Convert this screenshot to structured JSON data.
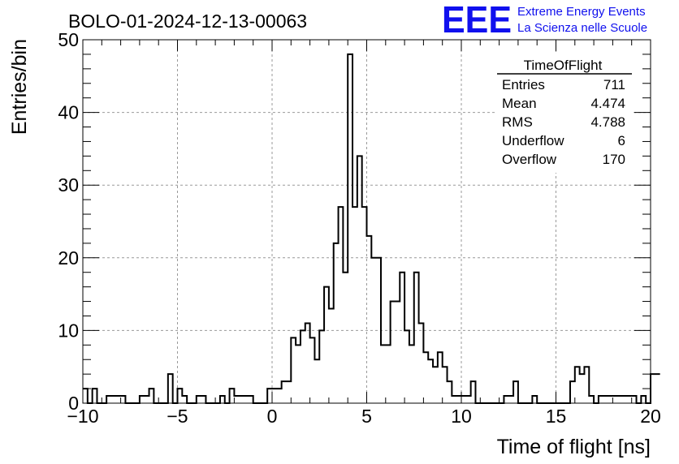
{
  "chart_data": {
    "type": "histogram",
    "title": "BOLO-01-2024-12-13-00063",
    "xlabel": "Time of flight [ns]",
    "ylabel": "Entries/bin",
    "xlim": [
      -10,
      20
    ],
    "ylim": [
      0,
      50
    ],
    "xticks": [
      -10,
      -5,
      0,
      5,
      10,
      15,
      20
    ],
    "yticks": [
      0,
      10,
      20,
      30,
      40,
      50
    ],
    "grid": true,
    "bin_width": 0.25,
    "series": [
      {
        "x_start": -10,
        "values": [
          2,
          0,
          2,
          0,
          0,
          1,
          1,
          1,
          1,
          0,
          0,
          0,
          1,
          1,
          2,
          0,
          0,
          0,
          4,
          0,
          2,
          1,
          0,
          0,
          1,
          1,
          0,
          0,
          0,
          1,
          0,
          2,
          1,
          1,
          1,
          1,
          0,
          0,
          0,
          2,
          2,
          2,
          3,
          3,
          9,
          8,
          10,
          11,
          9,
          6,
          10,
          16,
          13,
          22,
          27,
          18,
          48,
          27,
          34,
          27,
          23,
          20,
          20,
          8,
          8,
          14,
          14,
          18,
          10,
          8,
          18,
          11,
          7,
          6,
          5,
          7,
          5,
          3,
          1,
          1,
          1,
          1,
          3,
          0,
          0,
          0,
          0,
          0,
          0,
          1,
          1,
          3,
          0,
          0,
          0,
          1,
          0,
          0,
          0,
          0,
          0,
          0,
          0,
          3,
          5,
          4,
          5,
          1,
          0,
          1,
          1,
          1,
          1,
          1,
          1,
          1,
          1,
          0,
          1,
          0,
          4,
          4
        ]
      }
    ],
    "stats_box": {
      "title": "TimeOfFlight",
      "rows": [
        {
          "label": "Entries",
          "value": "711"
        },
        {
          "label": "Mean",
          "value": "4.474"
        },
        {
          "label": "RMS",
          "value": "4.788"
        },
        {
          "label": "Underflow",
          "value": "6"
        },
        {
          "label": "Overflow",
          "value": "170"
        }
      ]
    }
  },
  "logo": {
    "text": "EEE",
    "line1": "Extreme Energy Events",
    "line2": "La Scienza nelle Scuole",
    "color": "#1010ee"
  },
  "colors": {
    "line": "#000000",
    "grid": "#999999",
    "background": "#ffffff"
  }
}
